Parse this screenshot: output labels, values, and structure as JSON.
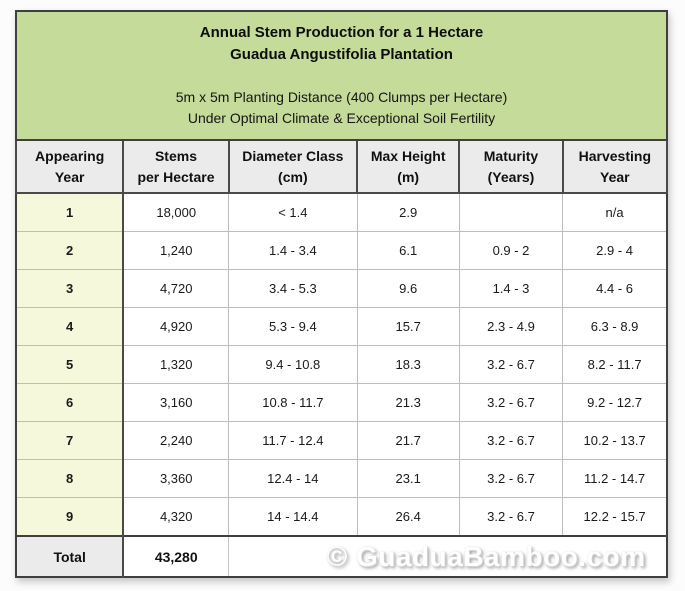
{
  "display": {
    "title_line1": "Annual Stem Production for a 1 Hectare",
    "title_line2": "Guadua Angustifolia Plantation",
    "subtitle_line1": "5m x 5m Planting Distance (400 Clumps per Hectare)",
    "subtitle_line2": "Under Optimal Climate & Exceptional Soil Fertility",
    "headers": [
      "Appearing\nYear",
      "Stems\nper Hectare",
      "Diameter Class\n(cm)",
      "Max Height\n(m)",
      "Maturity\n(Years)",
      "Harvesting\nYear"
    ],
    "watermark": "© GuaduaBamboo.com"
  },
  "colors": {
    "banner_green": "#c5db9a",
    "header_gray": "#ebebeb",
    "year_column_pale_green": "#f5f8db",
    "border_dark": "#3f3f3f",
    "border_light": "#bdbdbd",
    "watermark_white": "#ffffff"
  },
  "chart_data": {
    "type": "table",
    "title": "Annual Stem Production for a 1 Hectare Guadua Angustifolia Plantation",
    "subtitle": "5m x 5m Planting Distance (400 Clumps per Hectare) Under Optimal Climate & Exceptional Soil Fertility",
    "columns": [
      "Appearing Year",
      "Stems per Hectare",
      "Diameter Class (cm)",
      "Max Height (m)",
      "Maturity (Years)",
      "Harvesting Year"
    ],
    "rows": [
      [
        "1",
        "18,000",
        "< 1.4",
        "2.9",
        "",
        "n/a"
      ],
      [
        "2",
        "1,240",
        "1.4 - 3.4",
        "6.1",
        "0.9 - 2",
        "2.9 - 4"
      ],
      [
        "3",
        "4,720",
        "3.4 - 5.3",
        "9.6",
        "1.4 - 3",
        "4.4 - 6"
      ],
      [
        "4",
        "4,920",
        "5.3 - 9.4",
        "15.7",
        "2.3 - 4.9",
        "6.3 - 8.9"
      ],
      [
        "5",
        "1,320",
        "9.4 - 10.8",
        "18.3",
        "3.2 - 6.7",
        "8.2 - 11.7"
      ],
      [
        "6",
        "3,160",
        "10.8 - 11.7",
        "21.3",
        "3.2 - 6.7",
        "9.2 - 12.7"
      ],
      [
        "7",
        "2,240",
        "11.7 - 12.4",
        "21.7",
        "3.2 - 6.7",
        "10.2 - 13.7"
      ],
      [
        "8",
        "3,360",
        "12.4 - 14",
        "23.1",
        "3.2 - 6.7",
        "11.2 - 14.7"
      ],
      [
        "9",
        "4,320",
        "14 - 14.4",
        "26.4",
        "3.2 - 6.7",
        "12.2 - 15.7"
      ]
    ],
    "total": {
      "label": "Total",
      "stems_per_hectare": "43,280"
    }
  }
}
